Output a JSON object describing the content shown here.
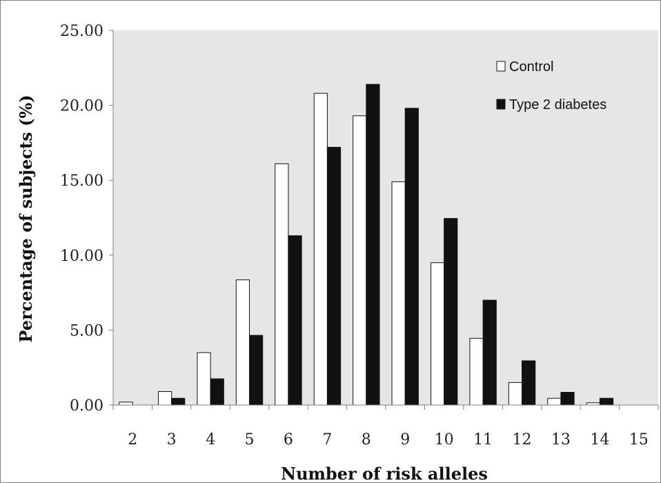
{
  "chart_data": {
    "type": "bar",
    "title": "",
    "xlabel": "Number of risk alleles",
    "ylabel": "Percentage of subjects (%)",
    "categories": [
      "2",
      "3",
      "4",
      "5",
      "6",
      "7",
      "8",
      "9",
      "10",
      "11",
      "12",
      "13",
      "14",
      "15"
    ],
    "series": [
      {
        "name": "Control",
        "color": "#ffffff",
        "values": [
          0.2,
          0.9,
          3.5,
          8.35,
          16.1,
          20.8,
          19.3,
          14.9,
          9.5,
          4.45,
          1.5,
          0.45,
          0.15,
          0
        ]
      },
      {
        "name": "Type 2 diabetes",
        "color": "#111111",
        "values": [
          0,
          0.45,
          1.75,
          4.65,
          11.3,
          17.2,
          21.4,
          19.8,
          12.45,
          7.0,
          2.95,
          0.85,
          0.45,
          0
        ]
      }
    ],
    "ylim": [
      0,
      25
    ],
    "yticks": [
      "0.00",
      "5.00",
      "10.00",
      "15.00",
      "20.00",
      "25.00"
    ],
    "ytick_values": [
      0,
      5,
      10,
      15,
      20,
      25
    ],
    "grid": false,
    "plot_background": "#e6e6e6",
    "legend_placement": "top-right"
  }
}
